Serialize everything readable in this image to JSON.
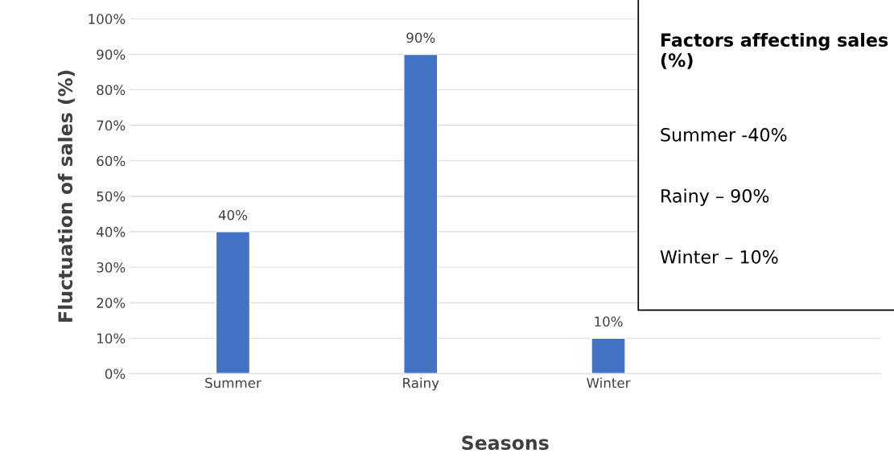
{
  "chart_data": {
    "type": "bar",
    "xlabel": "Seasons",
    "ylabel": "Fluctuation of sales (%)",
    "categories": [
      "Summer",
      "Rainy",
      "Winter"
    ],
    "values": [
      40,
      90,
      10
    ],
    "color": "#4472c4",
    "value_labels": [
      "40%",
      "90%",
      "10%"
    ],
    "ylim": [
      0,
      100
    ],
    "yticks": [
      {
        "value": 0,
        "label": "0%"
      },
      {
        "value": 10,
        "label": "10%"
      },
      {
        "value": 20,
        "label": "20%"
      },
      {
        "value": 30,
        "label": "30%"
      },
      {
        "value": 40,
        "label": "40%"
      },
      {
        "value": 50,
        "label": "50%"
      },
      {
        "value": 60,
        "label": "60%"
      },
      {
        "value": 70,
        "label": "70%"
      },
      {
        "value": 80,
        "label": "80%"
      },
      {
        "value": 90,
        "label": "90%"
      },
      {
        "value": 100,
        "label": "100%"
      }
    ],
    "grid": "y",
    "annotations": [
      "Factors affecting sales (%)",
      "Summer -40%",
      "Rainy – 90%",
      "Winter – 10%"
    ]
  }
}
